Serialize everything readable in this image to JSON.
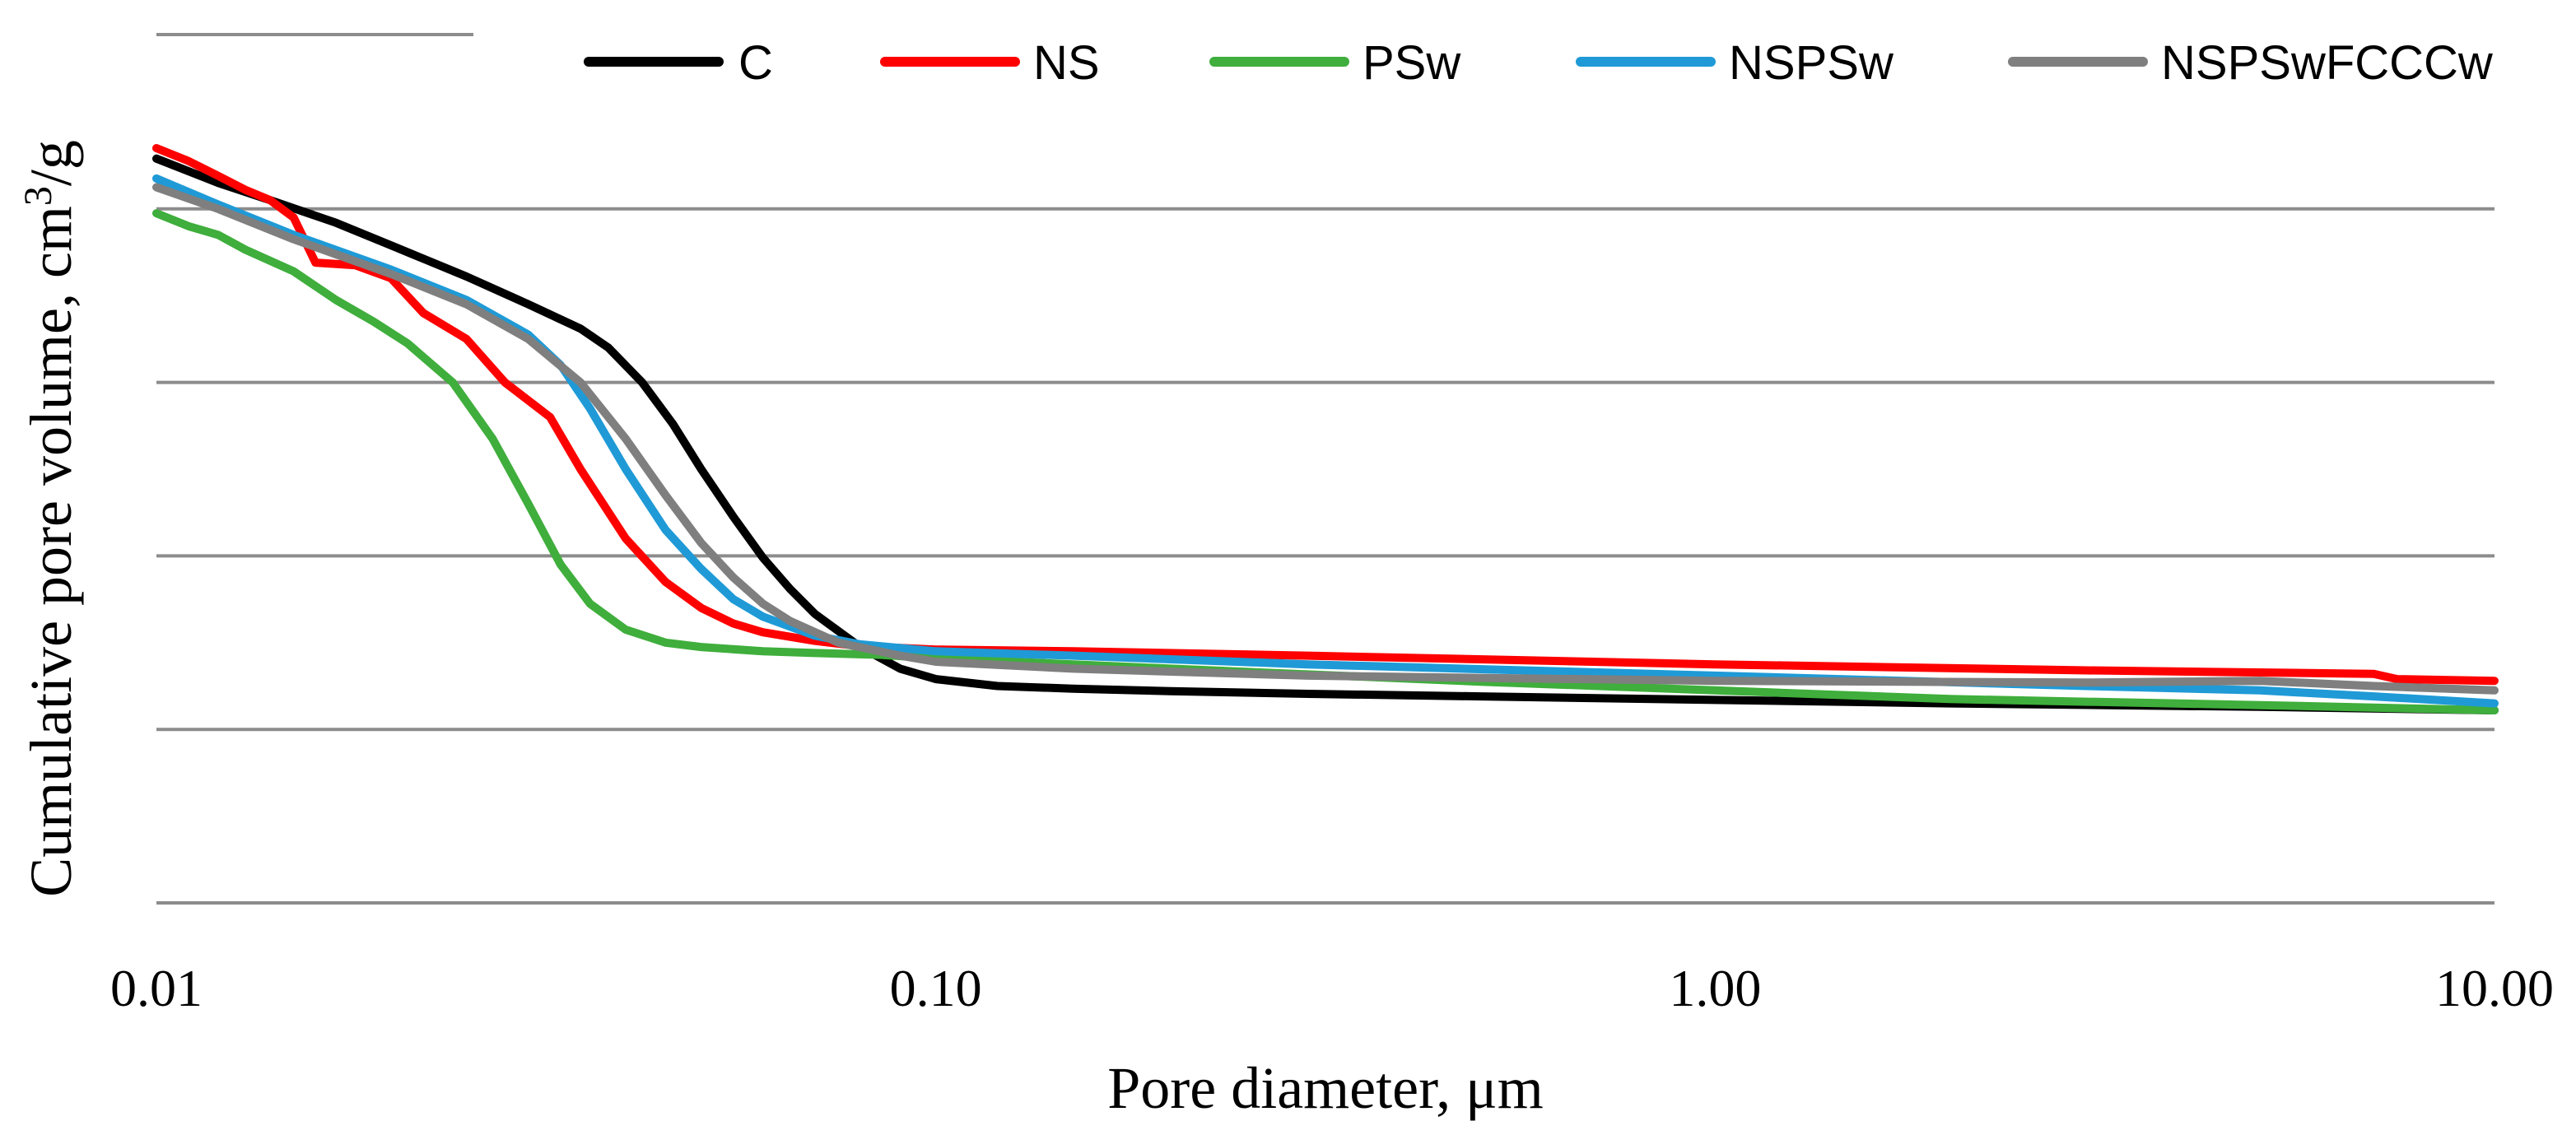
{
  "chart_data": {
    "type": "line",
    "title": "",
    "xlabel": "Pore diameter, μm",
    "ylabel": "Cumulative pore volume, cm³/g",
    "ylabel_parts": {
      "base": "Cumulative pore volume, cm",
      "sup": "3",
      "tail": "/g"
    },
    "x_scale": "log",
    "xlim": [
      0.01,
      10
    ],
    "ylim": [
      0,
      0.1
    ],
    "grid": "horizontal",
    "legend_position": "top",
    "x_ticks": [
      {
        "value": 0.01,
        "label": "0.01"
      },
      {
        "value": 0.1,
        "label": "0.10"
      },
      {
        "value": 1,
        "label": "1.00"
      },
      {
        "value": 10,
        "label": "10.00"
      }
    ],
    "y_gridlines": [
      0,
      0.02,
      0.04,
      0.06,
      0.08,
      0.1
    ],
    "series": [
      {
        "name": "C",
        "color": "#000000",
        "x": [
          0.01,
          0.012,
          0.014,
          0.017,
          0.02,
          0.025,
          0.03,
          0.035,
          0.038,
          0.042,
          0.046,
          0.05,
          0.055,
          0.06,
          0.065,
          0.07,
          0.08,
          0.09,
          0.1,
          0.12,
          0.15,
          0.2,
          0.3,
          0.5,
          1,
          2,
          5,
          10
        ],
        "y": [
          0.0858,
          0.083,
          0.081,
          0.0784,
          0.0758,
          0.0722,
          0.069,
          0.0662,
          0.064,
          0.06,
          0.0552,
          0.05,
          0.0445,
          0.0398,
          0.0362,
          0.0333,
          0.0295,
          0.027,
          0.0258,
          0.025,
          0.0247,
          0.0244,
          0.0241,
          0.0238,
          0.0234,
          0.023,
          0.0226,
          0.0222
        ]
      },
      {
        "name": "NS",
        "color": "#ff0000",
        "x": [
          0.01,
          0.011,
          0.012,
          0.013,
          0.014,
          0.015,
          0.016,
          0.018,
          0.02,
          0.022,
          0.025,
          0.028,
          0.032,
          0.035,
          0.04,
          0.045,
          0.05,
          0.055,
          0.06,
          0.07,
          0.08,
          0.1,
          0.15,
          0.3,
          1,
          3,
          7,
          7.5,
          10
        ],
        "y": [
          0.087,
          0.0855,
          0.0838,
          0.0822,
          0.081,
          0.079,
          0.0738,
          0.0735,
          0.072,
          0.068,
          0.065,
          0.06,
          0.056,
          0.05,
          0.042,
          0.037,
          0.034,
          0.0322,
          0.0312,
          0.0302,
          0.0296,
          0.0292,
          0.029,
          0.0285,
          0.0275,
          0.0268,
          0.0264,
          0.0258,
          0.0256
        ]
      },
      {
        "name": "PSw",
        "color": "#3fae3c",
        "x": [
          0.01,
          0.011,
          0.012,
          0.013,
          0.015,
          0.017,
          0.019,
          0.021,
          0.024,
          0.027,
          0.03,
          0.033,
          0.036,
          0.04,
          0.045,
          0.05,
          0.06,
          0.07,
          0.085,
          0.1,
          0.2,
          0.5,
          1,
          2,
          5,
          10
        ],
        "y": [
          0.0795,
          0.078,
          0.077,
          0.0753,
          0.0728,
          0.0695,
          0.067,
          0.0645,
          0.06,
          0.0535,
          0.046,
          0.039,
          0.0345,
          0.0315,
          0.03,
          0.0295,
          0.029,
          0.0288,
          0.0286,
          0.0282,
          0.027,
          0.0255,
          0.0245,
          0.0235,
          0.0228,
          0.0222
        ]
      },
      {
        "name": "NSPSw",
        "color": "#1f9ad6",
        "x": [
          0.01,
          0.012,
          0.015,
          0.02,
          0.025,
          0.03,
          0.033,
          0.036,
          0.04,
          0.045,
          0.05,
          0.055,
          0.06,
          0.07,
          0.08,
          0.1,
          0.15,
          0.3,
          1,
          3,
          5,
          7,
          10
        ],
        "y": [
          0.0835,
          0.0805,
          0.077,
          0.073,
          0.0695,
          0.0655,
          0.062,
          0.057,
          0.05,
          0.043,
          0.0385,
          0.035,
          0.033,
          0.0308,
          0.0298,
          0.029,
          0.0285,
          0.0275,
          0.0262,
          0.025,
          0.0245,
          0.0238,
          0.023
        ]
      },
      {
        "name": "NSPSwFCCCw",
        "color": "#7f7f7f",
        "x": [
          0.01,
          0.012,
          0.015,
          0.02,
          0.025,
          0.03,
          0.035,
          0.04,
          0.045,
          0.05,
          0.055,
          0.06,
          0.065,
          0.075,
          0.09,
          0.1,
          0.15,
          0.3,
          1,
          3,
          5,
          7,
          10
        ],
        "y": [
          0.0825,
          0.08,
          0.0765,
          0.0725,
          0.069,
          0.065,
          0.06,
          0.0535,
          0.047,
          0.0415,
          0.0375,
          0.0345,
          0.0325,
          0.03,
          0.0285,
          0.0278,
          0.027,
          0.0262,
          0.0256,
          0.0254,
          0.0256,
          0.025,
          0.0245
        ]
      }
    ]
  }
}
